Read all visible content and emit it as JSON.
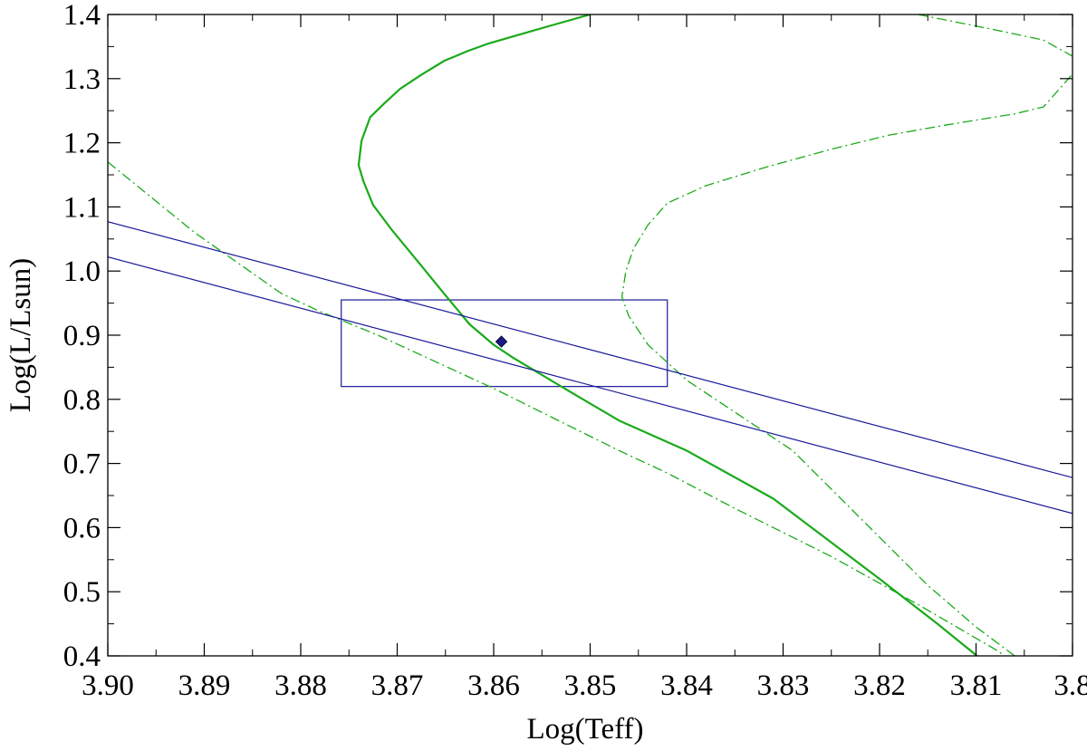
{
  "chart_data": {
    "type": "line",
    "xlabel": "Log(Teff)",
    "ylabel": "Log(L/Lsun)",
    "xlim": [
      3.9,
      3.8
    ],
    "ylim": [
      0.4,
      1.4
    ],
    "x_reversed": true,
    "grid": false,
    "legend": "none",
    "x_ticks": [
      3.9,
      3.89,
      3.88,
      3.87,
      3.86,
      3.85,
      3.84,
      3.83,
      3.82,
      3.81,
      3.8
    ],
    "x_tick_labels": [
      "3.90",
      "3.89",
      "3.88",
      "3.87",
      "3.86",
      "3.85",
      "3.84",
      "3.83",
      "3.82",
      "3.81",
      "3.8"
    ],
    "y_ticks": [
      0.4,
      0.5,
      0.6,
      0.7,
      0.8,
      0.9,
      1.0,
      1.1,
      1.2,
      1.3,
      1.4
    ],
    "y_tick_labels": [
      "0.4",
      "0.5",
      "0.6",
      "0.7",
      "0.8",
      "0.9",
      "1.0",
      "1.1",
      "1.2",
      "1.3",
      "1.4"
    ],
    "series": [
      {
        "color": "#1aaa1a",
        "style": "solid",
        "points": [
          [
            3.8099,
            0.4
          ],
          [
            3.814,
            0.45
          ],
          [
            3.82,
            0.52
          ],
          [
            3.831,
            0.645
          ],
          [
            3.84,
            0.72
          ],
          [
            3.847,
            0.767
          ],
          [
            3.853,
            0.82
          ],
          [
            3.858,
            0.865
          ],
          [
            3.86,
            0.885
          ],
          [
            3.8625,
            0.917
          ],
          [
            3.8652,
            0.966
          ],
          [
            3.8676,
            1.01
          ],
          [
            3.8705,
            1.063
          ],
          [
            3.8725,
            1.103
          ],
          [
            3.8735,
            1.14
          ],
          [
            3.874,
            1.165
          ],
          [
            3.8737,
            1.203
          ],
          [
            3.8728,
            1.24
          ],
          [
            3.8713,
            1.262
          ],
          [
            3.8697,
            1.284
          ],
          [
            3.8675,
            1.306
          ],
          [
            3.8651,
            1.328
          ],
          [
            3.8627,
            1.343
          ],
          [
            3.8605,
            1.355
          ],
          [
            3.857,
            1.37
          ],
          [
            3.854,
            1.383
          ],
          [
            3.85,
            1.4
          ]
        ]
      },
      {
        "color": "#1aaa1a",
        "style": "dashdot",
        "points": [
          [
            3.9,
            1.17
          ],
          [
            3.891,
            1.06
          ],
          [
            3.882,
            0.965
          ],
          [
            3.878,
            0.937
          ],
          [
            3.872,
            0.9
          ],
          [
            3.86,
            0.817
          ],
          [
            3.847,
            0.72
          ],
          [
            3.842,
            0.685
          ],
          [
            3.835,
            0.63
          ],
          [
            3.825,
            0.555
          ],
          [
            3.816,
            0.48
          ],
          [
            3.808,
            0.41
          ],
          [
            3.807,
            0.4
          ]
        ]
      },
      {
        "color": "#1aaa1a",
        "style": "dashdot",
        "points": [
          [
            3.806,
            0.4
          ],
          [
            3.81,
            0.445
          ],
          [
            3.815,
            0.51
          ],
          [
            3.822,
            0.615
          ],
          [
            3.829,
            0.72
          ],
          [
            3.84,
            0.83
          ],
          [
            3.844,
            0.885
          ],
          [
            3.846,
            0.93
          ],
          [
            3.8467,
            0.96
          ],
          [
            3.8463,
            1.0
          ],
          [
            3.8455,
            1.035
          ],
          [
            3.844,
            1.072
          ],
          [
            3.842,
            1.106
          ],
          [
            3.838,
            1.133
          ],
          [
            3.832,
            1.161
          ],
          [
            3.825,
            1.19
          ],
          [
            3.819,
            1.212
          ],
          [
            3.813,
            1.228
          ],
          [
            3.806,
            1.245
          ],
          [
            3.803,
            1.256
          ],
          [
            3.8,
            1.307
          ]
        ]
      },
      {
        "color": "#1aaa1a",
        "style": "dashdot",
        "points": [
          [
            3.816,
            1.4
          ],
          [
            3.808,
            1.376
          ],
          [
            3.803,
            1.36
          ],
          [
            3.8,
            1.335
          ]
        ]
      },
      {
        "color": "#1a1a9a",
        "style": "solid",
        "points": [
          [
            3.9,
            1.077
          ],
          [
            3.8,
            0.678
          ]
        ]
      },
      {
        "color": "#1a1a9a",
        "style": "solid",
        "points": [
          [
            3.9,
            1.022
          ],
          [
            3.8,
            0.622
          ]
        ]
      }
    ],
    "error_box": {
      "color": "#1a1a9a",
      "x": [
        3.8758,
        3.842
      ],
      "y": [
        0.82,
        0.955
      ]
    },
    "marker": {
      "x": 3.8592,
      "y": 0.89,
      "shape": "diamond",
      "color": "#1a1a8a"
    }
  }
}
